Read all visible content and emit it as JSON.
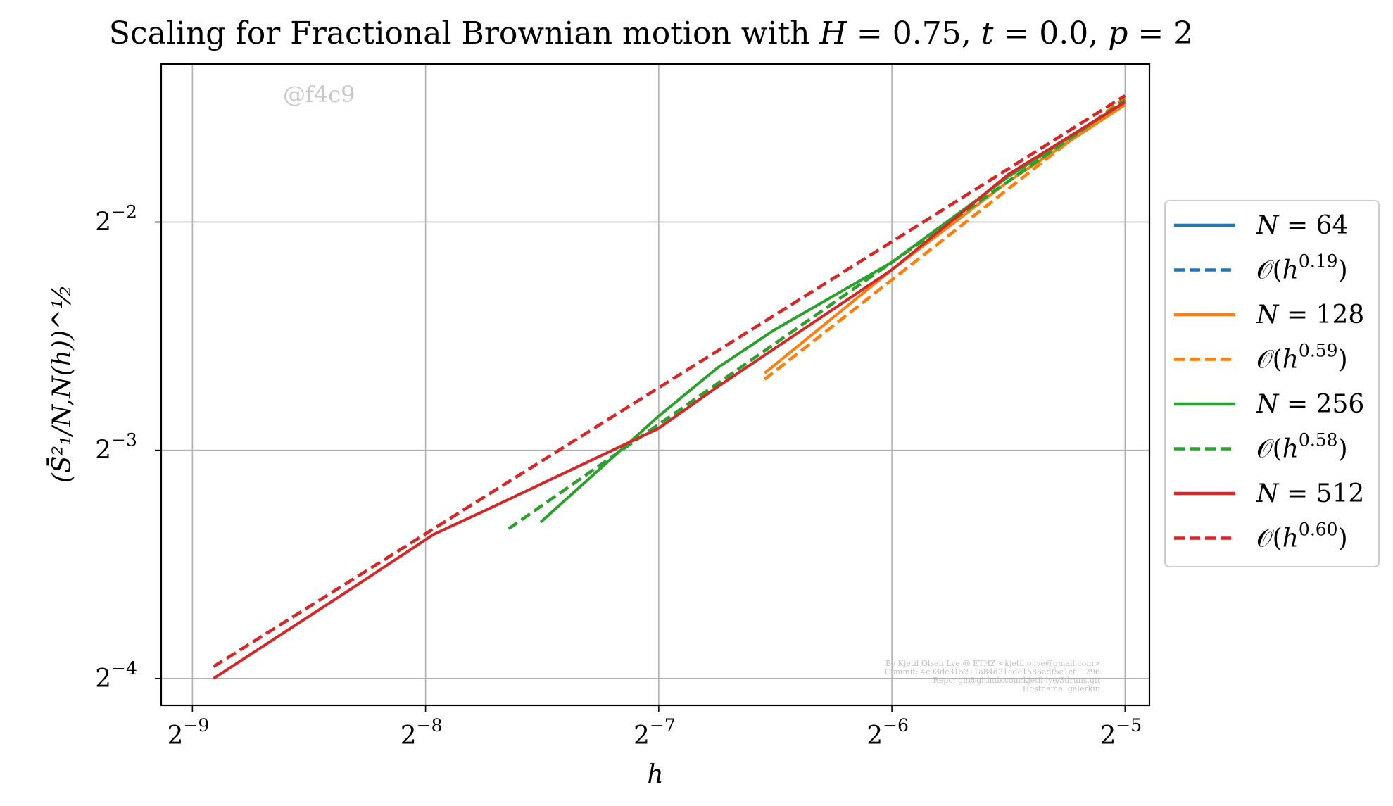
{
  "chart_data": {
    "type": "line",
    "title": "Scaling for Fractional Brownian motion with H = 0.75, t = 0.0, p = 2",
    "xlabel": "h",
    "ylabel": "(S̄²₁/N,N(h))^½",
    "x_scale": "log2",
    "y_scale": "log2",
    "xlim": [
      0.00178,
      0.0336
    ],
    "ylim": [
      0.0576,
      0.404
    ],
    "x_ticks": [
      0.001953125,
      0.00390625,
      0.0078125,
      0.015625,
      0.03125
    ],
    "x_tick_labels": [
      {
        "base": "2",
        "exp": "−9"
      },
      {
        "base": "2",
        "exp": "−8"
      },
      {
        "base": "2",
        "exp": "−7"
      },
      {
        "base": "2",
        "exp": "−6"
      },
      {
        "base": "2",
        "exp": "−5"
      }
    ],
    "y_ticks": [
      0.0625,
      0.125,
      0.25
    ],
    "y_tick_labels": [
      {
        "base": "2",
        "exp": "−4"
      },
      {
        "base": "2",
        "exp": "−3"
      },
      {
        "base": "2",
        "exp": "−2"
      }
    ],
    "grid": true,
    "legend_position": "right-outside",
    "series": [
      {
        "name": "N = 64",
        "style": "solid",
        "color": "#1f77b4",
        "x": [
          0.03125
        ],
        "y": [
          0.364
        ]
      },
      {
        "name": "𝒪(h^0.19)",
        "style": "dashed",
        "color": "#1f77b4",
        "x": [
          0.03125
        ],
        "y": [
          0.364
        ]
      },
      {
        "name": "N = 128",
        "style": "solid",
        "color": "#ff7f0e",
        "x": [
          0.0107,
          0.0156,
          0.0221,
          0.03125
        ],
        "y": [
          0.158,
          0.216,
          0.283,
          0.357
        ]
      },
      {
        "name": "𝒪(h^0.59)",
        "style": "dashed",
        "color": "#ff7f0e",
        "x": [
          0.0107,
          0.03125
        ],
        "y": [
          0.155,
          0.365
        ]
      },
      {
        "name": "N = 256",
        "style": "solid",
        "color": "#2ca02c",
        "x": [
          0.0055,
          0.0078,
          0.0093,
          0.011,
          0.0156,
          0.0221,
          0.03125
        ],
        "y": [
          0.1005,
          0.1385,
          0.1605,
          0.18,
          0.221,
          0.287,
          0.36
        ]
      },
      {
        "name": "𝒪(h^0.58)",
        "style": "dashed",
        "color": "#2ca02c",
        "x": [
          0.005,
          0.03125
        ],
        "y": [
          0.0985,
          0.362
        ]
      },
      {
        "name": "N = 512",
        "style": "solid",
        "color": "#d62728",
        "x": [
          0.00208,
          0.0031,
          0.004,
          0.0047,
          0.0078,
          0.0093,
          0.0156,
          0.0221,
          0.03125
        ],
        "y": [
          0.0625,
          0.0815,
          0.0968,
          0.1045,
          0.1335,
          0.1515,
          0.216,
          0.289,
          0.36
        ]
      },
      {
        "name": "𝒪(h^0.60)",
        "style": "dashed",
        "color": "#d62728",
        "x": [
          0.00208,
          0.03125
        ],
        "y": [
          0.0648,
          0.367
        ]
      }
    ]
  },
  "watermark": "@f4c9",
  "credit_lines": [
    "By Kjetil Olsen Lye @ ETHZ <kjetil.o.lye@gmail.com>",
    "Commit: 4c93dc315211a84d21ede1586adf5c1cf11296",
    "Repo: git@github.com:kjetil-lye/3druns.git",
    "Hostname: galerkin"
  ]
}
